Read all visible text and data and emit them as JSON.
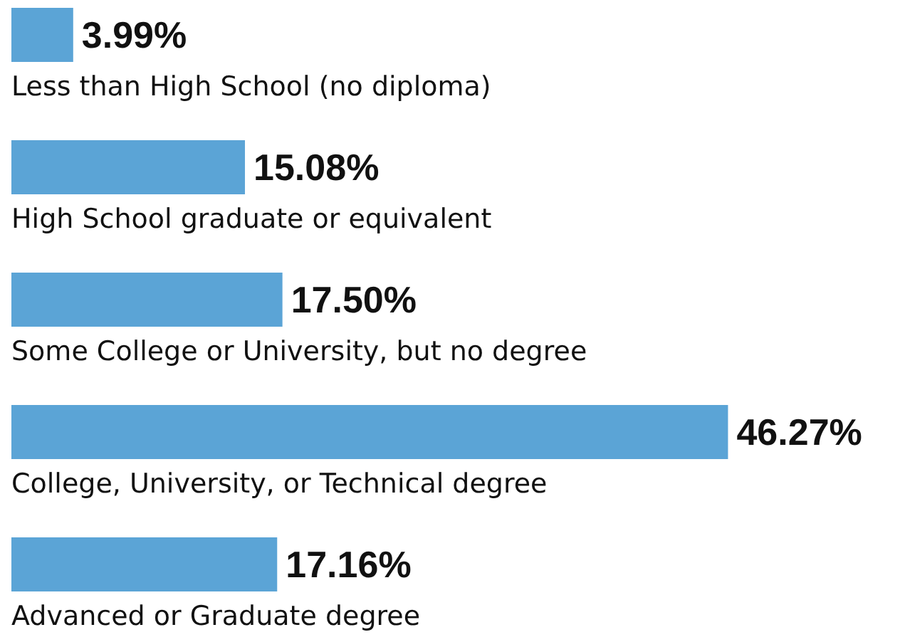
{
  "chart_data": {
    "type": "bar",
    "orientation": "horizontal",
    "categories": [
      "Less than High School (no diploma)",
      "High School graduate or equivalent",
      "Some College or University, but no degree",
      "College, University, or Technical degree",
      "Advanced or Graduate degree"
    ],
    "values": [
      3.99,
      15.08,
      17.5,
      46.27,
      17.16
    ],
    "value_labels": [
      "3.99%",
      "15.08%",
      "17.50%",
      "46.27%",
      "17.16%"
    ],
    "color": "#5ba4d6",
    "tick_labels": "y"
  }
}
